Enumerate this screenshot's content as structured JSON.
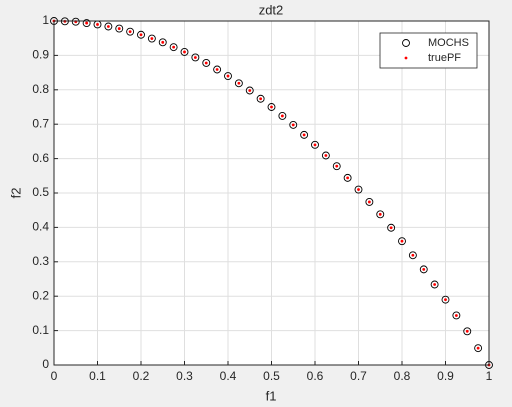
{
  "chart_data": {
    "type": "scatter",
    "title": "zdt2",
    "xlabel": "f1",
    "ylabel": "f2",
    "x": [
      0,
      0.025,
      0.05,
      0.075,
      0.1,
      0.125,
      0.15,
      0.175,
      0.2,
      0.225,
      0.25,
      0.275,
      0.3,
      0.325,
      0.35,
      0.375,
      0.4,
      0.425,
      0.45,
      0.475,
      0.5,
      0.525,
      0.55,
      0.575,
      0.6,
      0.625,
      0.65,
      0.675,
      0.7,
      0.725,
      0.75,
      0.775,
      0.8,
      0.825,
      0.85,
      0.875,
      0.9,
      0.925,
      0.95,
      0.975,
      1
    ],
    "series": [
      {
        "name": "MOCHS",
        "color": "#000000",
        "marker": "circle",
        "values": [
          1,
          0.999,
          0.998,
          0.994,
          0.99,
          0.984,
          0.978,
          0.969,
          0.96,
          0.949,
          0.938,
          0.924,
          0.91,
          0.894,
          0.878,
          0.859,
          0.84,
          0.819,
          0.798,
          0.774,
          0.75,
          0.724,
          0.698,
          0.669,
          0.64,
          0.609,
          0.578,
          0.544,
          0.51,
          0.474,
          0.438,
          0.399,
          0.36,
          0.319,
          0.278,
          0.234,
          0.19,
          0.144,
          0.098,
          0.049,
          0
        ]
      },
      {
        "name": "truePF",
        "color": "#ff0000",
        "marker": "dot",
        "values": [
          1,
          0.999,
          0.998,
          0.994,
          0.99,
          0.984,
          0.978,
          0.969,
          0.96,
          0.949,
          0.938,
          0.924,
          0.91,
          0.894,
          0.878,
          0.859,
          0.84,
          0.819,
          0.798,
          0.774,
          0.75,
          0.724,
          0.698,
          0.669,
          0.64,
          0.609,
          0.578,
          0.544,
          0.51,
          0.474,
          0.438,
          0.399,
          0.36,
          0.319,
          0.278,
          0.234,
          0.19,
          0.144,
          0.098,
          0.049,
          0
        ]
      }
    ],
    "xlim": [
      0,
      1
    ],
    "ylim": [
      0,
      1
    ],
    "xticks": [
      0,
      0.1,
      0.2,
      0.3,
      0.4,
      0.5,
      0.6,
      0.7,
      0.8,
      0.9,
      1
    ],
    "yticks": [
      0,
      0.1,
      0.2,
      0.3,
      0.4,
      0.5,
      0.6,
      0.7,
      0.8,
      0.9,
      1
    ],
    "grid": true,
    "legend": "northeast"
  }
}
